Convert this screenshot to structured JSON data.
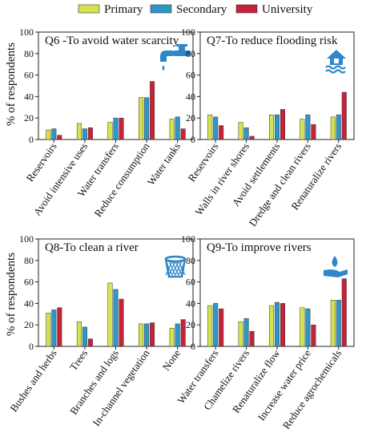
{
  "colors": {
    "primary": "#d7e34a",
    "secondary": "#2f97c8",
    "university": "#c7223a",
    "icon": "#2f86c9"
  },
  "legend": [
    {
      "key": "primary",
      "label": "Primary"
    },
    {
      "key": "secondary",
      "label": "Secondary"
    },
    {
      "key": "university",
      "label": "University"
    }
  ],
  "ylabel": "% of respondents",
  "chart_data": [
    {
      "type": "bar",
      "title": "Q6 -To avoid water scarcity",
      "icon": "water-tap-icon",
      "categories": [
        "Reservoirs",
        "Avoid intensive uses",
        "Water transfers",
        "Reduce consumption",
        "Water tanks"
      ],
      "series": [
        {
          "name": "Primary",
          "values": [
            9,
            15,
            16,
            39,
            19
          ]
        },
        {
          "name": "Secondary",
          "values": [
            10,
            10,
            20,
            39,
            21
          ]
        },
        {
          "name": "University",
          "values": [
            4,
            11,
            20,
            54,
            10
          ]
        }
      ],
      "ylim": [
        0,
        100
      ],
      "yticks": [
        0,
        20,
        40,
        60,
        80,
        100
      ]
    },
    {
      "type": "bar",
      "title": "Q7-To reduce flooding risk",
      "icon": "flooded-house-icon",
      "categories": [
        "Reservoirs",
        "Walls in river shores",
        "Avoid settlements",
        "Dredge and clean rivers",
        "Renaturalize rivers"
      ],
      "series": [
        {
          "name": "Primary",
          "values": [
            23,
            16,
            23,
            19,
            21
          ]
        },
        {
          "name": "Secondary",
          "values": [
            21,
            11,
            23,
            23,
            23
          ]
        },
        {
          "name": "University",
          "values": [
            13,
            3,
            28,
            14,
            44
          ]
        }
      ],
      "ylim": [
        0,
        100
      ],
      "yticks": [
        0,
        20,
        40,
        60,
        80,
        100
      ]
    },
    {
      "type": "bar",
      "title": "Q8-To clean a river",
      "icon": "waste-basket-icon",
      "categories": [
        "Bushes and herbs",
        "Trees",
        "Branches and logs",
        "In-channel vegetation",
        "None"
      ],
      "series": [
        {
          "name": "Primary",
          "values": [
            31,
            23,
            59,
            21,
            17
          ]
        },
        {
          "name": "Secondary",
          "values": [
            34,
            18,
            53,
            21,
            21
          ]
        },
        {
          "name": "University",
          "values": [
            36,
            7,
            44,
            22,
            25
          ]
        }
      ],
      "ylim": [
        0,
        100
      ],
      "yticks": [
        0,
        20,
        40,
        60,
        80,
        100
      ]
    },
    {
      "type": "bar",
      "title": "Q9-To improve rivers",
      "icon": "hand-water-drop-icon",
      "categories": [
        "Water transfers",
        "Chamelize rivers",
        "Renaturalize flow",
        "Increase water price",
        "Reduce agrochemicals"
      ],
      "series": [
        {
          "name": "Primary",
          "values": [
            38,
            23,
            38,
            36,
            43
          ]
        },
        {
          "name": "Secondary",
          "values": [
            40,
            26,
            41,
            35,
            43
          ]
        },
        {
          "name": "University",
          "values": [
            35,
            14,
            40,
            20,
            63
          ]
        }
      ],
      "ylim": [
        0,
        100
      ],
      "yticks": [
        0,
        20,
        40,
        60,
        80,
        100
      ]
    }
  ]
}
